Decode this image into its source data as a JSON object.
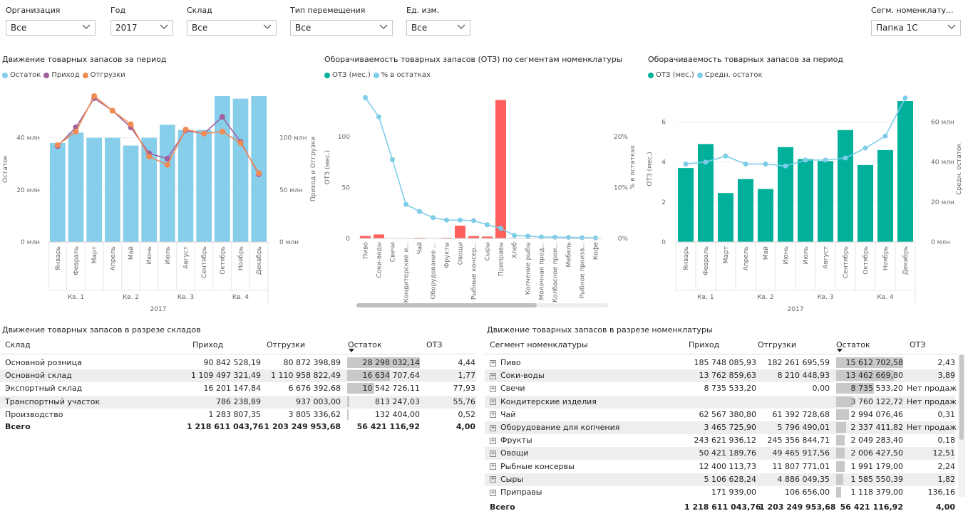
{
  "slicers": [
    {
      "label": "Организация",
      "value": "Все"
    },
    {
      "label": "Год",
      "value": "2017"
    },
    {
      "label": "Склад",
      "value": "Все"
    },
    {
      "label": "Тип перемещения",
      "value": "Все"
    },
    {
      "label": "Ед. изм.",
      "value": "Все"
    },
    {
      "label": "Сегм. номенклату...",
      "value": "Папка 1С"
    }
  ],
  "colors": {
    "stock": "#87CEEB",
    "income": "#A15E9C",
    "shipments": "#F28B52",
    "oz": "#00B09B",
    "ozRed": "#FF5F5D",
    "pct": "#7DCDE8"
  },
  "chart_data": [
    {
      "type": "bar",
      "title": "Движение товарных запасов за период",
      "categories": [
        "Январь",
        "Февраль",
        "Март",
        "Апрель",
        "Май",
        "Июнь",
        "Июль",
        "Август",
        "Сентябрь",
        "Октябрь",
        "Ноябрь",
        "Декабрь"
      ],
      "quarters": [
        "Кв. 1",
        "Кв. 2",
        "Кв. 3",
        "Кв. 4"
      ],
      "year": "2017",
      "ylabel": "Остаток",
      "y2label": "Приход и Отгрузки",
      "yticks": [
        "0 млн",
        "20 млн",
        "40 млн"
      ],
      "y2ticks": [
        "0 млн",
        "50 млн",
        "100 млн"
      ],
      "ylim": [
        0,
        56
      ],
      "y2lim": [
        0,
        140
      ],
      "legend": [
        "Остаток",
        "Приход",
        "Отгрузки"
      ],
      "series": [
        {
          "name": "Остаток",
          "kind": "bar",
          "values": [
            38,
            42,
            40,
            40,
            37,
            40,
            45,
            43,
            43,
            56,
            55,
            56
          ]
        },
        {
          "name": "Приход",
          "kind": "line",
          "values": [
            92,
            110,
            138,
            126,
            110,
            85,
            80,
            107,
            104,
            120,
            96,
            65
          ]
        },
        {
          "name": "Отгрузки",
          "kind": "line",
          "values": [
            93,
            106,
            140,
            126,
            113,
            82,
            74,
            108,
            104,
            106,
            95,
            66
          ]
        }
      ]
    },
    {
      "type": "bar",
      "title": "Оборачиваемость товарных запасов (ОТЗ) по сегментам номенклатуры",
      "categories": [
        "Пиво",
        "Соки-воды",
        "Свечи",
        "Кондитерские и...",
        "Чай",
        "Оборудование ...",
        "Фрукты",
        "Овощи",
        "Рыбные консер...",
        "Сыры",
        "Приправы",
        "Хлеб",
        "Копчение рыбы",
        "Молочная прод...",
        "Колбасное прои...",
        "Мебель",
        "Рыбное произв...",
        "Кофе"
      ],
      "ylabel": "ОТЗ (мес.)",
      "y2label": "% в остатках",
      "yticks": [
        "0",
        "50",
        "100"
      ],
      "y2ticks": [
        "0%",
        "10%",
        "20%"
      ],
      "ylim": [
        0,
        140
      ],
      "y2lim": [
        0,
        28
      ],
      "legend": [
        "ОТЗ (мес.)",
        "% в остатках"
      ],
      "series": [
        {
          "name": "ОТЗ (мес.)",
          "kind": "bar",
          "values": [
            2.43,
            3.89,
            0,
            0,
            0.31,
            0,
            0.18,
            12.51,
            2.24,
            1.82,
            136.16,
            0,
            0,
            0,
            0,
            0,
            0,
            0
          ]
        },
        {
          "name": "% в остатках",
          "kind": "line",
          "values": [
            27.7,
            23.9,
            15.5,
            6.7,
            5.3,
            4.1,
            3.6,
            3.6,
            3.5,
            2.7,
            2.0,
            0.6,
            0.45,
            0.3,
            0.25,
            0.2,
            0.15,
            0.1
          ]
        }
      ]
    },
    {
      "type": "bar",
      "title": "Оборачиваемость товарных запасов за период",
      "categories": [
        "Январь",
        "Февраль",
        "Март",
        "Апрель",
        "Май",
        "Июнь",
        "Июль",
        "Август",
        "Сентябрь",
        "Октябрь",
        "Ноябрь",
        "Декабрь"
      ],
      "quarters": [
        "Кв. 1",
        "Кв. 2",
        "Кв. 3",
        "Кв. 4"
      ],
      "year": "2017",
      "ylabel": "ОТЗ (мес.)",
      "y2label": "Средн. остаток",
      "yticks": [
        "0",
        "2",
        "4",
        "6"
      ],
      "y2ticks": [
        "0 млн",
        "20 млн",
        "40 млн",
        "60 млн"
      ],
      "ylim": [
        0,
        7.3
      ],
      "y2lim": [
        0,
        73
      ],
      "legend": [
        "ОТЗ (мес.)",
        "Средн. остаток"
      ],
      "series": [
        {
          "name": "ОТЗ (мес.)",
          "kind": "bar",
          "values": [
            3.7,
            4.9,
            2.45,
            3.15,
            2.65,
            4.75,
            4.15,
            4.05,
            5.6,
            3.85,
            4.6,
            7.05
          ]
        },
        {
          "name": "Средн. остаток",
          "kind": "line",
          "values": [
            39,
            40,
            43,
            39,
            39,
            38,
            41,
            41,
            42,
            47,
            53,
            72
          ]
        }
      ]
    }
  ],
  "warehouseTable": {
    "title": "Движение товарных запасов в разрезе складов",
    "headers": [
      "Склад",
      "Приход",
      "Отгрузки",
      "Остаток",
      "ОТЗ"
    ],
    "rows": [
      {
        "name": "Основной розница",
        "income": "90 842 528,19",
        "ship": "80 872 398,89",
        "stock": "28 298 032,14",
        "oz": "4,44",
        "share": 1.0
      },
      {
        "name": "Основной склад",
        "income": "1 109 497 321,49",
        "ship": "1 110 958 822,49",
        "stock": "16 634 707,64",
        "oz": "1,77",
        "share": 0.588
      },
      {
        "name": "Экспортный склад",
        "income": "16 201 147,84",
        "ship": "6 676 392,68",
        "stock": "10 542 726,11",
        "oz": "77,93",
        "share": 0.373
      },
      {
        "name": "Транспортный участок",
        "income": "786 238,89",
        "ship": "937 003,00",
        "stock": "813 247,03",
        "oz": "55,76",
        "share": 0.029
      },
      {
        "name": "Производство",
        "income": "1 283 807,35",
        "ship": "3 805 336,62",
        "stock": "132 404,00",
        "oz": "0,52",
        "share": 0.005
      }
    ],
    "total": {
      "name": "Всего",
      "income": "1 218 611 043,76",
      "ship": "1 203 249 953,68",
      "stock": "56 421 116,92",
      "oz": "4,00"
    }
  },
  "segmentTable": {
    "title": "Движение товарных запасов в разрезе номенклатуры",
    "headers": [
      "Сегмент номенклатуры",
      "Приход",
      "Отгрузки",
      "Остаток",
      "ОТЗ"
    ],
    "rows": [
      {
        "name": "Пиво",
        "income": "185 748 085,93",
        "ship": "182 261 695,59",
        "stock": "15 612 702,58",
        "oz": "2,43",
        "share": 1.0
      },
      {
        "name": "Соки-воды",
        "income": "13 762 859,63",
        "ship": "8 210 448,93",
        "stock": "13 462 669,80",
        "oz": "3,89",
        "share": 0.862
      },
      {
        "name": "Свечи",
        "income": "8 735 533,20",
        "ship": "0,00",
        "stock": "8 735 533,20",
        "oz": "Нет продаж",
        "share": 0.56
      },
      {
        "name": "Кондитерские изделия",
        "income": "",
        "ship": "",
        "stock": "3 760 122,72",
        "oz": "Нет продаж",
        "share": 0.241
      },
      {
        "name": "Чай",
        "income": "62 567 380,80",
        "ship": "61 392 728,68",
        "stock": "2 994 076,46",
        "oz": "0,31",
        "share": 0.192
      },
      {
        "name": "Оборудование для копчения",
        "income": "3 465 725,90",
        "ship": "5 796 490,01",
        "stock": "2 337 411,82",
        "oz": "Нет продаж",
        "share": 0.15
      },
      {
        "name": "Фрукты",
        "income": "243 621 936,12",
        "ship": "245 356 844,71",
        "stock": "2 049 283,40",
        "oz": "0,18",
        "share": 0.131
      },
      {
        "name": "Овощи",
        "income": "50 421 189,76",
        "ship": "49 465 917,56",
        "stock": "2 006 427,50",
        "oz": "12,51",
        "share": 0.129
      },
      {
        "name": "Рыбные консервы",
        "income": "12 400 113,73",
        "ship": "11 807 771,01",
        "stock": "1 991 179,00",
        "oz": "2,24",
        "share": 0.128
      },
      {
        "name": "Сыры",
        "income": "5 106 628,24",
        "ship": "4 886 049,35",
        "stock": "1 585 550,39",
        "oz": "1,82",
        "share": 0.102
      },
      {
        "name": "Приправы",
        "income": "171 939,00",
        "ship": "106 656,00",
        "stock": "1 118 379,00",
        "oz": "136,16",
        "share": 0.072
      }
    ],
    "total": {
      "name": "Всего",
      "income": "1 218 611 043,76",
      "ship": "1 203 249 953,68",
      "stock": "56 421 116,92",
      "oz": "4,00"
    }
  }
}
